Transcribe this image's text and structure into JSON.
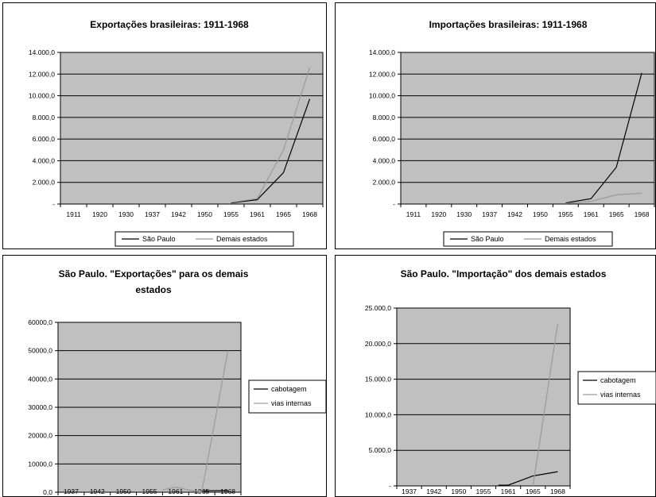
{
  "colors": {
    "plot_bg": "#c0c0c0",
    "series_dark": "#000000",
    "series_light": "#9a9a9a",
    "grid": "#000000",
    "frame": "#000000"
  },
  "chart_data": [
    {
      "id": "chart1",
      "type": "line",
      "title": [
        "Exportações brasileiras: 1911-1968"
      ],
      "x": [
        "1911",
        "1920",
        "1930",
        "1937",
        "1942",
        "1950",
        "1955",
        "1961",
        "1965",
        "1968"
      ],
      "ytick_labels": [
        "-",
        "2.000,0",
        "4.000,0",
        "6.000,0",
        "8.000,0",
        "10.000,0",
        "12.000,0",
        "14.000,0"
      ],
      "ylim": [
        0,
        14000
      ],
      "grid": true,
      "legend": "bottom",
      "series": [
        {
          "name": "São Paulo",
          "color": "#000000",
          "points": [
            [
              6,
              100
            ],
            [
              7,
              400
            ],
            [
              8,
              2900
            ],
            [
              9,
              9700
            ]
          ]
        },
        {
          "name": "Demais estados",
          "color": "#9a9a9a",
          "points": [
            [
              6,
              150
            ],
            [
              7,
              500
            ],
            [
              8,
              5000
            ],
            [
              9,
              12600
            ]
          ]
        }
      ]
    },
    {
      "id": "chart2",
      "type": "line",
      "title": [
        "Importações brasileiras: 1911-1968"
      ],
      "x": [
        "1911",
        "1920",
        "1930",
        "1937",
        "1942",
        "1950",
        "1955",
        "1961",
        "1965",
        "1968"
      ],
      "ytick_labels": [
        "-",
        "2.000,0",
        "4.000,0",
        "6.000,0",
        "8.000,0",
        "10.000,0",
        "12.000,0",
        "14.000,0"
      ],
      "ylim": [
        0,
        14000
      ],
      "grid": true,
      "legend": "bottom",
      "series": [
        {
          "name": "São Paulo",
          "color": "#000000",
          "points": [
            [
              6,
              100
            ],
            [
              7,
              500
            ],
            [
              8,
              3400
            ],
            [
              9,
              12100
            ]
          ]
        },
        {
          "name": "Demais estados",
          "color": "#9a9a9a",
          "points": [
            [
              6,
              50
            ],
            [
              7,
              250
            ],
            [
              8,
              850
            ],
            [
              9,
              1000
            ]
          ]
        }
      ]
    },
    {
      "id": "chart3",
      "type": "line",
      "title": [
        "São Paulo. \"Exportações\" para os demais",
        "estados"
      ],
      "x": [
        "1937",
        "1942",
        "1950",
        "1955",
        "1961",
        "1965",
        "1968"
      ],
      "ytick_labels": [
        "0,0",
        "10000,0",
        "20000,0",
        "30000,0",
        "40000,0",
        "50000,0",
        "60000,0"
      ],
      "ylim": [
        0,
        60000
      ],
      "grid": true,
      "legend": "right",
      "series": [
        {
          "name": "cabotagem",
          "color": "#000000",
          "points": [
            [
              5,
              500
            ],
            [
              6,
              600
            ]
          ]
        },
        {
          "name": "vias internas",
          "color": "#9a9a9a",
          "points": [
            [
              3.5,
              800
            ],
            [
              4,
              1800
            ],
            [
              4.5,
              800
            ],
            [
              5,
              0
            ],
            [
              6,
              50000
            ]
          ]
        }
      ]
    },
    {
      "id": "chart4",
      "type": "line",
      "title": [
        "São Paulo. \"Importação\" dos demais estados"
      ],
      "x": [
        "1937",
        "1942",
        "1950",
        "1955",
        "1961",
        "1965",
        "1968"
      ],
      "ytick_labels": [
        "-",
        "5.000,0",
        "10.000,0",
        "15.000,0",
        "20.000,0",
        "25.000,0"
      ],
      "ylim": [
        0,
        25000
      ],
      "grid": true,
      "legend": "right",
      "series": [
        {
          "name": "cabotagem",
          "color": "#000000",
          "points": [
            [
              3.6,
              100
            ],
            [
              4,
              100
            ],
            [
              5,
              1400
            ],
            [
              6,
              2000
            ]
          ]
        },
        {
          "name": "vias internas",
          "color": "#9a9a9a",
          "points": [
            [
              5,
              0
            ],
            [
              6,
              22800
            ]
          ]
        }
      ]
    }
  ]
}
